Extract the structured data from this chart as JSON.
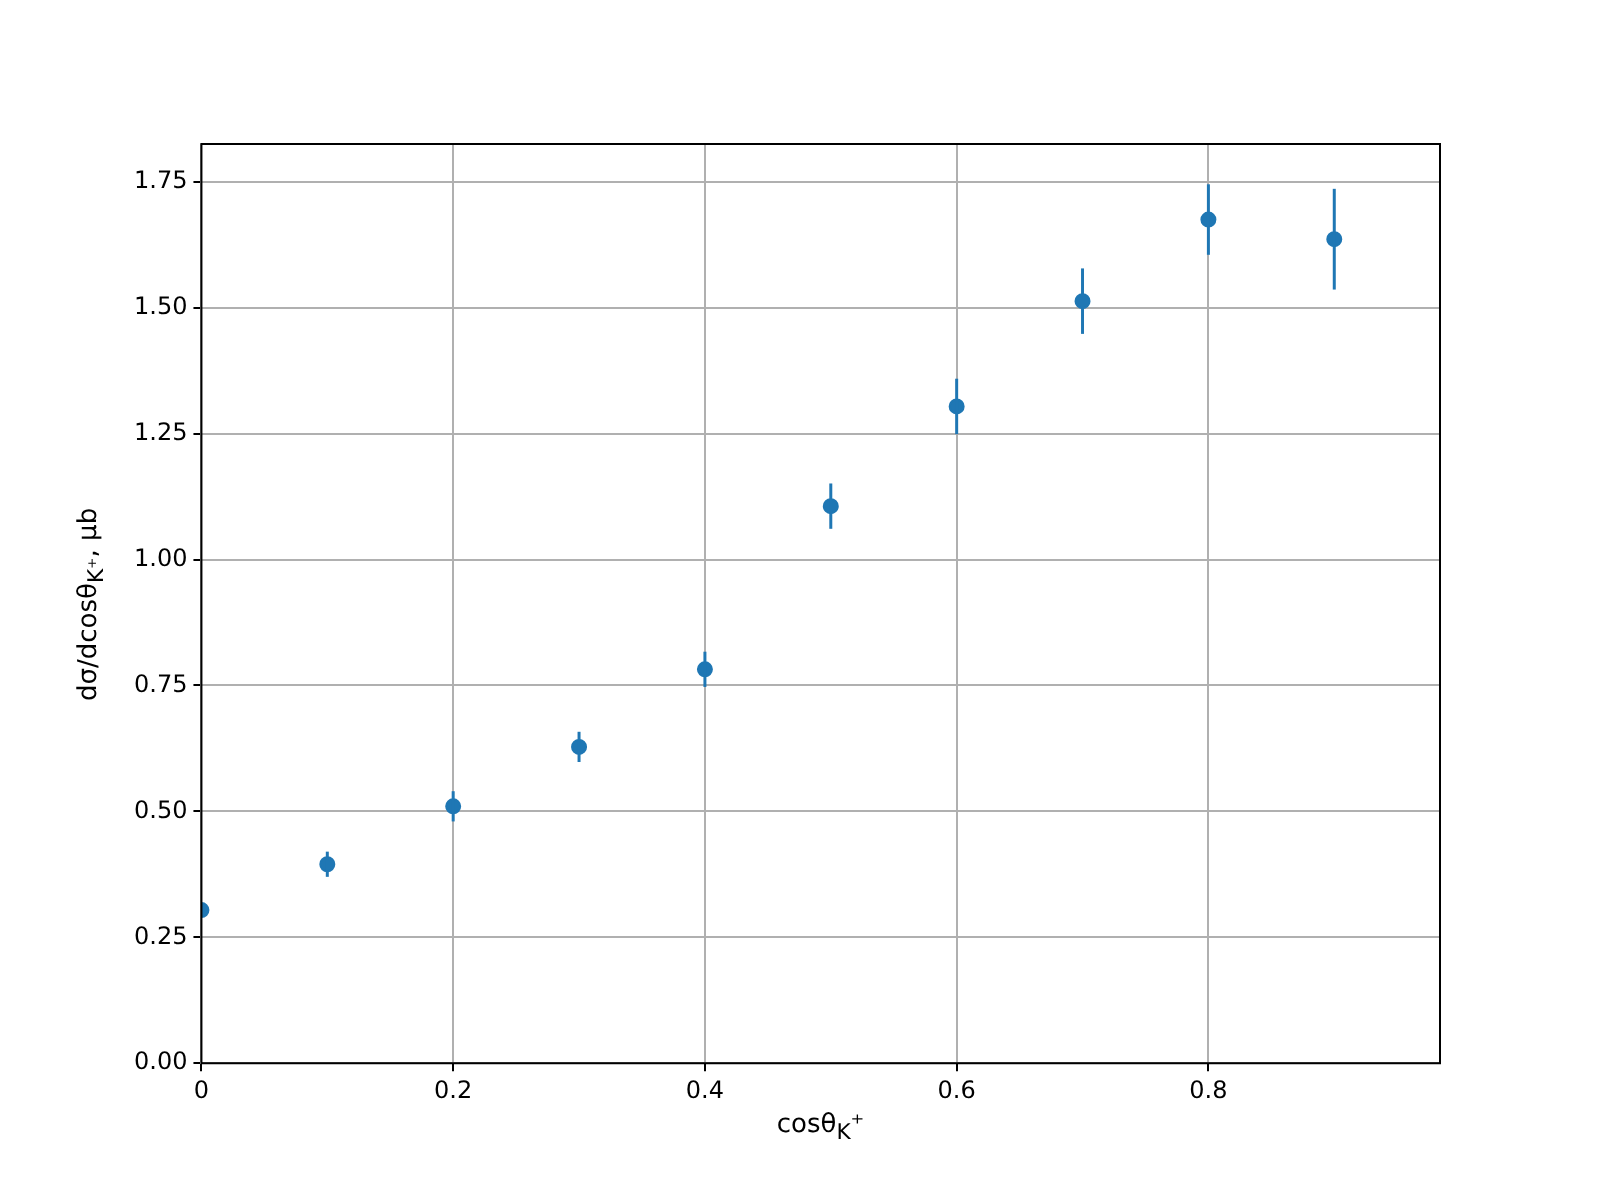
{
  "chart_data": {
    "type": "scatter",
    "xlabel": "cosθ$_{K}$⁺",
    "ylabel": "dσ/dcosθ$_{K⁺}$, μb",
    "x": [
      0,
      0.1,
      0.2,
      0.3,
      0.4,
      0.5,
      0.6,
      0.7,
      0.8,
      0.9
    ],
    "series": [
      {
        "color": "#1f77b4",
        "values": [
          0.304,
          0.395,
          0.51,
          0.628,
          0.782,
          1.106,
          1.304,
          1.513,
          1.675,
          1.636
        ],
        "errors": [
          null,
          0.025,
          0.03,
          0.03,
          0.035,
          0.045,
          0.055,
          0.065,
          0.07,
          0.1
        ]
      }
    ],
    "xlim": [
      0,
      0.984
    ],
    "ylim": [
      0,
      1.825
    ],
    "xticks": [
      0,
      0.2,
      0.4,
      0.6,
      0.8
    ],
    "yticks": [
      {
        "value": 0,
        "label": "0.00"
      },
      {
        "value": 0.25,
        "label": "0.25"
      },
      {
        "value": 0.5,
        "label": "0.50"
      },
      {
        "value": 0.75,
        "label": "0.75"
      },
      {
        "value": 1,
        "label": "1.00"
      },
      {
        "value": 1.25,
        "label": "1.25"
      },
      {
        "value": 1.5,
        "label": "1.50"
      },
      {
        "value": 1.75,
        "label": "1.75"
      }
    ],
    "grid": true,
    "marker": "circle",
    "legend": false
  }
}
